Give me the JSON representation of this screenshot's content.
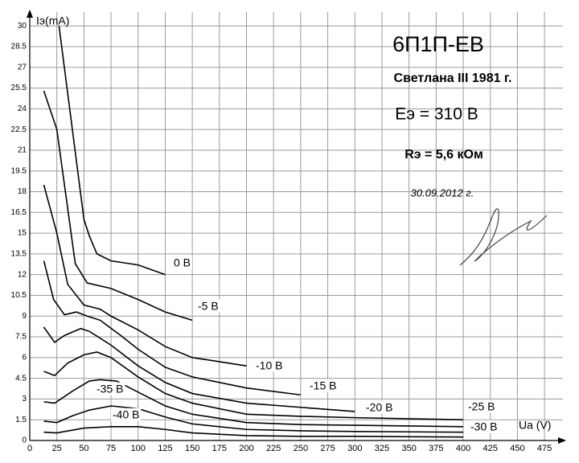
{
  "chart_data": {
    "type": "line",
    "title": "6П1П-ЕВ",
    "subtitle": "Светлана III 1981 г.",
    "annotations": [
      "Eэ = 310 В",
      "Rэ = 5,6 кОм",
      "30.09.2012 г."
    ],
    "y_label": "Iэ(mA)",
    "x_label": "Ua (V)",
    "xlim": [
      0,
      492
    ],
    "ylim": [
      0,
      31
    ],
    "xticks": [
      0,
      25,
      50,
      75,
      100,
      125,
      150,
      175,
      200,
      225,
      250,
      275,
      300,
      325,
      350,
      375,
      400,
      425,
      450,
      475
    ],
    "yticks": [
      0,
      1.5,
      3,
      4.5,
      6,
      7.5,
      9,
      10.5,
      12,
      13.5,
      15,
      16.5,
      18,
      19.5,
      21,
      22.5,
      24,
      25.5,
      27,
      28.5,
      30
    ],
    "grid": true,
    "series": [
      {
        "name": "0 В",
        "color": "#000000",
        "x": [
          27,
          50,
          55,
          62,
          75,
          100,
          125
        ],
        "values": [
          30,
          16,
          14.8,
          13.5,
          13,
          12.7,
          12
        ]
      },
      {
        "name": "-5 В",
        "color": "#000000",
        "x": [
          13,
          25,
          42,
          53,
          75,
          100,
          125,
          150
        ],
        "values": [
          25.3,
          22.5,
          12.8,
          11.4,
          11,
          10.2,
          9.3,
          8.7
        ]
      },
      {
        "name": "-10 В",
        "color": "#000000",
        "x": [
          13,
          25,
          35,
          50,
          65,
          75,
          100,
          125,
          150,
          200
        ],
        "values": [
          18.5,
          15,
          11.3,
          9.8,
          9.5,
          9,
          8,
          6.8,
          6,
          5.4
        ]
      },
      {
        "name": "-15 В",
        "color": "#000000",
        "x": [
          13,
          22,
          32,
          43,
          53,
          65,
          84,
          100,
          125,
          150,
          200,
          250
        ],
        "values": [
          13,
          10.2,
          9.1,
          9.3,
          9,
          8.7,
          7.6,
          6.6,
          5.3,
          4.6,
          3.8,
          3.3
        ]
      },
      {
        "name": "-20 В",
        "color": "#000000",
        "x": [
          13,
          23,
          32,
          47,
          55,
          75,
          100,
          125,
          150,
          200,
          250,
          300
        ],
        "values": [
          8.2,
          7.1,
          7.6,
          8.1,
          7.9,
          6.9,
          5.4,
          4.2,
          3.4,
          2.7,
          2.4,
          2.1
        ]
      },
      {
        "name": "-25 В",
        "color": "#000000",
        "x": [
          13,
          23,
          35,
          50,
          62,
          75,
          100,
          125,
          150,
          200,
          250,
          300,
          400
        ],
        "values": [
          5,
          4.7,
          5.6,
          6.2,
          6.4,
          6,
          4.6,
          3.4,
          2.7,
          1.9,
          1.75,
          1.65,
          1.5
        ]
      },
      {
        "name": "-30 В",
        "color": "#000000",
        "x": [
          13,
          23,
          40,
          55,
          65,
          80,
          100,
          125,
          150,
          200,
          250,
          300,
          400
        ],
        "values": [
          2.8,
          2.7,
          3.6,
          4.3,
          4.4,
          4.3,
          3.5,
          2.5,
          1.9,
          1.3,
          1.15,
          1.1,
          1
        ]
      },
      {
        "name": "-35 В",
        "color": "#000000",
        "x": [
          13,
          25,
          40,
          55,
          75,
          100,
          125,
          150,
          200,
          250,
          300,
          400
        ],
        "values": [
          1.4,
          1.3,
          1.8,
          2.2,
          2.5,
          2.3,
          1.7,
          1.2,
          0.8,
          0.7,
          0.65,
          0.6
        ]
      },
      {
        "name": "-40 В",
        "color": "#000000",
        "x": [
          13,
          25,
          50,
          75,
          100,
          125,
          150,
          200,
          250,
          300,
          400
        ],
        "values": [
          0.6,
          0.55,
          0.9,
          1,
          1,
          0.8,
          0.55,
          0.35,
          0.3,
          0.3,
          0.25
        ]
      }
    ]
  }
}
